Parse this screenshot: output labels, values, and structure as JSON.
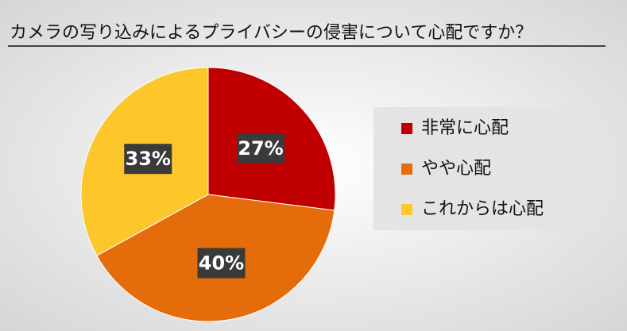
{
  "chart_data": {
    "type": "pie",
    "title": "カメラの写り込みによるプライバシーの侵害について心配ですか？",
    "categories": [
      "非常に心配",
      "やや心配",
      "これからは心配"
    ],
    "values": [
      27,
      40,
      33
    ],
    "value_labels": [
      "27%",
      "40%",
      "33%"
    ],
    "colors": [
      "#c00000",
      "#e46c0a",
      "#fdc72c"
    ],
    "legend": "right"
  }
}
